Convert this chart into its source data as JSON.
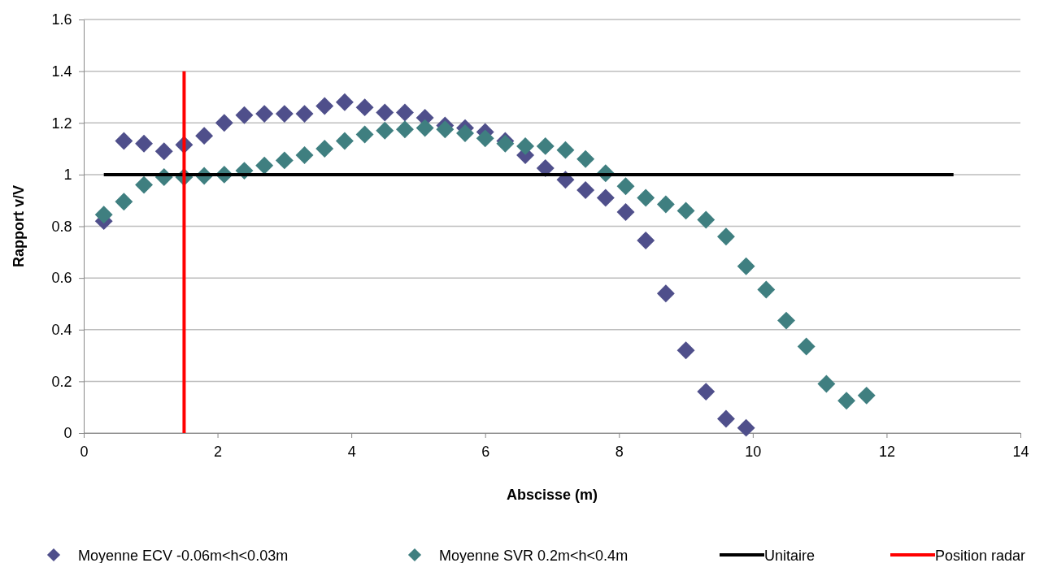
{
  "chart_data": {
    "type": "scatter",
    "xlabel": "Abscisse (m)",
    "ylabel": "Rapport v/V",
    "xlim": [
      0,
      14
    ],
    "xticks": [
      0,
      2,
      4,
      6,
      8,
      10,
      12,
      14
    ],
    "ylim": [
      0,
      1.6
    ],
    "yticks": [
      0,
      0.2,
      0.4,
      0.6,
      0.8,
      1,
      1.2,
      1.4,
      1.6
    ],
    "grid": "y",
    "legend": "bottom",
    "series": [
      {
        "name": "Moyenne ECV -0.06m<h<0.03m",
        "marker": "diamond",
        "color": "#4f4f8b",
        "x": [
          0.3,
          0.6,
          0.9,
          1.2,
          1.5,
          1.8,
          2.1,
          2.4,
          2.7,
          3.0,
          3.3,
          3.6,
          3.9,
          4.2,
          4.5,
          4.8,
          5.1,
          5.4,
          5.7,
          6.0,
          6.3,
          6.6,
          6.9,
          7.2,
          7.5,
          7.8,
          8.1,
          8.4,
          8.7,
          9.0,
          9.3,
          9.6,
          9.9
        ],
        "values": [
          0.82,
          1.13,
          1.12,
          1.09,
          1.115,
          1.15,
          1.2,
          1.23,
          1.235,
          1.235,
          1.235,
          1.265,
          1.28,
          1.26,
          1.24,
          1.24,
          1.22,
          1.19,
          1.18,
          1.165,
          1.13,
          1.075,
          1.025,
          0.98,
          0.94,
          0.91,
          0.855,
          0.745,
          0.54,
          0.32,
          0.16,
          0.055,
          0.02
        ]
      },
      {
        "name": "Moyenne SVR 0.2m<h<0.4m",
        "marker": "diamond",
        "color": "#3f7f80",
        "x": [
          0.3,
          0.6,
          0.9,
          1.2,
          1.5,
          1.8,
          2.1,
          2.4,
          2.7,
          3.0,
          3.3,
          3.6,
          3.9,
          4.2,
          4.5,
          4.8,
          5.1,
          5.4,
          5.7,
          6.0,
          6.3,
          6.6,
          6.9,
          7.2,
          7.5,
          7.8,
          8.1,
          8.4,
          8.7,
          9.0,
          9.3,
          9.6,
          9.9,
          10.2,
          10.5,
          10.8,
          11.1,
          11.4,
          11.7
        ],
        "values": [
          0.845,
          0.895,
          0.96,
          0.99,
          0.99,
          0.995,
          1.0,
          1.015,
          1.035,
          1.055,
          1.075,
          1.1,
          1.13,
          1.155,
          1.17,
          1.175,
          1.18,
          1.175,
          1.16,
          1.14,
          1.12,
          1.11,
          1.11,
          1.095,
          1.06,
          1.005,
          0.955,
          0.91,
          0.885,
          0.86,
          0.825,
          0.76,
          0.645,
          0.555,
          0.435,
          0.335,
          0.19,
          0.125,
          0.145
        ]
      },
      {
        "name": "Unitaire",
        "type": "line",
        "marker": "none",
        "color": "#000000",
        "x": [
          0.3,
          13
        ],
        "values": [
          1,
          1
        ]
      },
      {
        "name": "Position radar",
        "type": "line",
        "marker": "none",
        "color": "#ff0000",
        "x": [
          1.5,
          1.5
        ],
        "values": [
          0,
          1.4
        ]
      }
    ]
  }
}
